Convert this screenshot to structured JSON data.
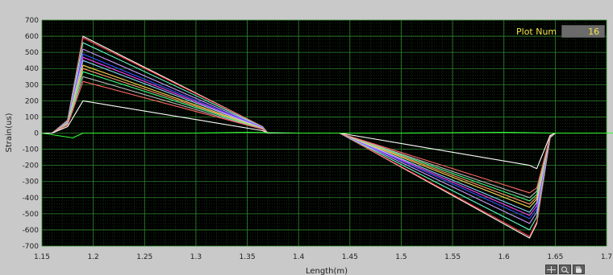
{
  "plot_num": {
    "label": "Plot Num",
    "value": "16"
  },
  "tools": [
    {
      "icon": "crosshair-icon"
    },
    {
      "icon": "zoom-icon"
    },
    {
      "icon": "hand-pan-icon"
    }
  ],
  "colors": {
    "plot_bg": "#000000",
    "grid": "#2f8a2f",
    "frame": "#c9c9c9",
    "label_text": "#f2e24a"
  },
  "chart_data": {
    "type": "line",
    "xlabel": "Length(m)",
    "ylabel": "Strain(us)",
    "xlim": [
      1.15,
      1.7
    ],
    "ylim": [
      -700,
      700
    ],
    "x_ticks": [
      "1.15",
      "1.2",
      "1.25",
      "1.3",
      "1.35",
      "1.4",
      "1.45",
      "1.5",
      "1.55",
      "1.6",
      "1.65",
      "1.7"
    ],
    "y_ticks": [
      "700",
      "600",
      "500",
      "400",
      "300",
      "200",
      "100",
      "0",
      "-100",
      "-200",
      "-300",
      "-400",
      "-500",
      "-600",
      "-700"
    ],
    "grid": true,
    "series": [
      {
        "color": "#ffffff",
        "values_x": [
          1.15,
          1.16,
          1.175,
          1.19,
          1.365,
          1.37,
          1.44,
          1.44,
          1.625,
          1.632,
          1.645,
          1.65,
          1.74
        ],
        "values_y": [
          0,
          0,
          80,
          600,
          40,
          0,
          0,
          0,
          -650,
          -560,
          -30,
          0,
          0
        ]
      },
      {
        "color": "#ff4040",
        "values_x": [
          1.15,
          1.16,
          1.175,
          1.19,
          1.365,
          1.37,
          1.44,
          1.44,
          1.625,
          1.632,
          1.645,
          1.65,
          1.74
        ],
        "values_y": [
          0,
          0,
          80,
          590,
          40,
          0,
          0,
          0,
          -640,
          -550,
          -30,
          0,
          0
        ]
      },
      {
        "color": "#66ffcc",
        "values_x": [
          1.15,
          1.16,
          1.175,
          1.19,
          1.365,
          1.37,
          1.44,
          1.44,
          1.625,
          1.632,
          1.645,
          1.65,
          1.74
        ],
        "values_y": [
          0,
          0,
          75,
          560,
          38,
          0,
          0,
          0,
          -600,
          -520,
          -28,
          0,
          0
        ]
      },
      {
        "color": "#cc99ff",
        "values_x": [
          1.15,
          1.16,
          1.175,
          1.19,
          1.365,
          1.37,
          1.44,
          1.44,
          1.625,
          1.632,
          1.645,
          1.65,
          1.74
        ],
        "values_y": [
          0,
          0,
          70,
          520,
          36,
          0,
          0,
          0,
          -560,
          -490,
          -26,
          0,
          0
        ]
      },
      {
        "color": "#3355ff",
        "values_x": [
          1.15,
          1.16,
          1.175,
          1.19,
          1.365,
          1.37,
          1.44,
          1.44,
          1.625,
          1.632,
          1.645,
          1.65,
          1.74
        ],
        "values_y": [
          0,
          0,
          68,
          490,
          34,
          0,
          0,
          0,
          -530,
          -470,
          -25,
          0,
          0
        ]
      },
      {
        "color": "#ff44ff",
        "values_x": [
          1.15,
          1.16,
          1.175,
          1.19,
          1.365,
          1.37,
          1.44,
          1.44,
          1.625,
          1.632,
          1.645,
          1.65,
          1.74
        ],
        "values_y": [
          0,
          0,
          66,
          470,
          32,
          0,
          0,
          0,
          -510,
          -450,
          -24,
          0,
          0
        ]
      },
      {
        "color": "#88ddff",
        "values_x": [
          1.15,
          1.16,
          1.175,
          1.19,
          1.365,
          1.37,
          1.44,
          1.44,
          1.625,
          1.632,
          1.645,
          1.65,
          1.74
        ],
        "values_y": [
          0,
          0,
          64,
          450,
          30,
          0,
          0,
          0,
          -490,
          -430,
          -23,
          0,
          0
        ]
      },
      {
        "color": "#ffdd55",
        "values_x": [
          1.15,
          1.16,
          1.175,
          1.19,
          1.365,
          1.37,
          1.44,
          1.44,
          1.625,
          1.632,
          1.645,
          1.65,
          1.74
        ],
        "values_y": [
          0,
          0,
          60,
          420,
          28,
          0,
          0,
          0,
          -460,
          -410,
          -22,
          0,
          0
        ]
      },
      {
        "color": "#ff9966",
        "values_x": [
          1.15,
          1.16,
          1.175,
          1.19,
          1.365,
          1.37,
          1.44,
          1.44,
          1.625,
          1.632,
          1.645,
          1.65,
          1.74
        ],
        "values_y": [
          0,
          0,
          58,
          400,
          27,
          0,
          0,
          0,
          -440,
          -395,
          -21,
          0,
          0
        ]
      },
      {
        "color": "#44ff88",
        "values_x": [
          1.15,
          1.16,
          1.175,
          1.19,
          1.365,
          1.37,
          1.44,
          1.44,
          1.625,
          1.632,
          1.645,
          1.65,
          1.74
        ],
        "values_y": [
          0,
          0,
          55,
          380,
          26,
          0,
          0,
          0,
          -420,
          -380,
          -20,
          0,
          0
        ]
      },
      {
        "color": "#bbbbbb",
        "values_x": [
          1.15,
          1.16,
          1.175,
          1.19,
          1.365,
          1.37,
          1.44,
          1.44,
          1.625,
          1.632,
          1.645,
          1.65,
          1.74
        ],
        "values_y": [
          0,
          0,
          52,
          350,
          25,
          0,
          0,
          0,
          -400,
          -360,
          -19,
          0,
          0
        ]
      },
      {
        "color": "#ff6666",
        "values_x": [
          1.15,
          1.16,
          1.175,
          1.19,
          1.365,
          1.37,
          1.44,
          1.44,
          1.625,
          1.632,
          1.645,
          1.65,
          1.74
        ],
        "values_y": [
          0,
          0,
          50,
          320,
          24,
          0,
          0,
          0,
          -370,
          -340,
          -18,
          0,
          0
        ]
      },
      {
        "color": "#ffffff",
        "values_x": [
          1.15,
          1.16,
          1.175,
          1.19,
          1.365,
          1.37,
          1.44,
          1.44,
          1.625,
          1.632,
          1.645,
          1.65,
          1.74
        ],
        "values_y": [
          0,
          0,
          40,
          200,
          15,
          0,
          0,
          0,
          -200,
          -220,
          -15,
          0,
          0
        ]
      },
      {
        "color": "#33ff33",
        "values_x": [
          1.15,
          1.16,
          1.17,
          1.18,
          1.19,
          1.3,
          1.35,
          1.4,
          1.44,
          1.5,
          1.6,
          1.65,
          1.74
        ],
        "values_y": [
          0,
          -10,
          -20,
          -30,
          0,
          0,
          5,
          0,
          0,
          0,
          5,
          0,
          0
        ]
      }
    ]
  }
}
